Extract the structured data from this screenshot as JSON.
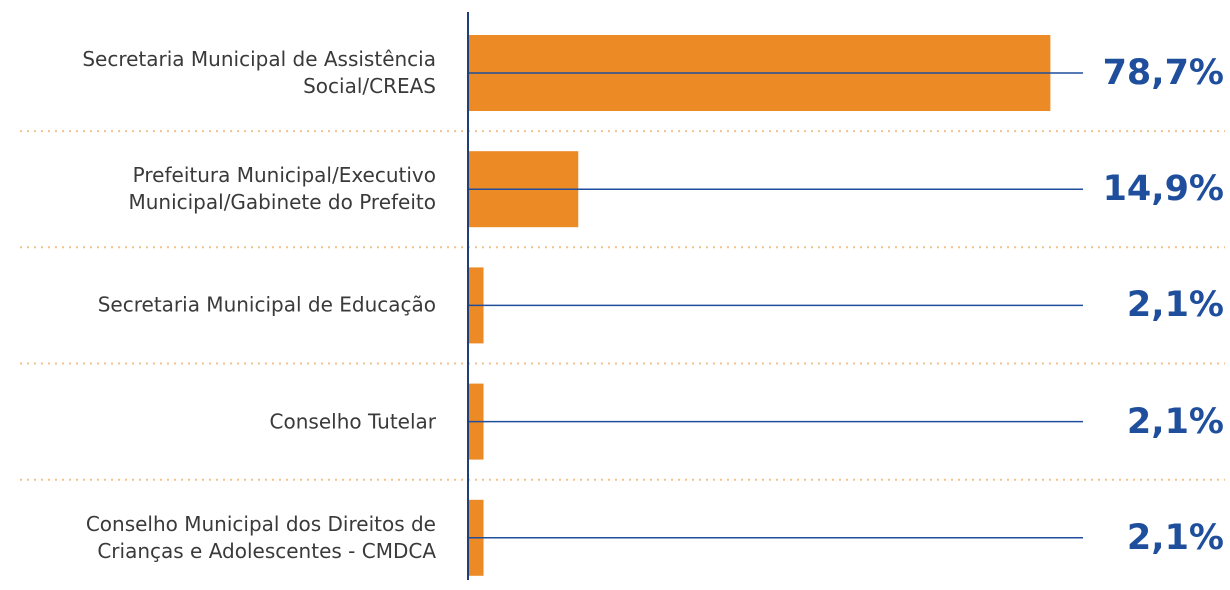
{
  "chart_data": {
    "type": "barh",
    "categories": [
      "Secretaria Municipal de Assistência\nSocial/CREAS",
      "Prefeitura Municipal/Executivo\nMunicipal/Gabinete do Prefeito",
      "Secretaria Municipal de Educação",
      "Conselho Tutelar",
      "Conselho Municipal dos Direitos de\nCrianças e Adolescentes - CMDCA"
    ],
    "values": [
      78.7,
      14.9,
      2.1,
      2.1,
      2.1
    ],
    "value_labels": [
      "78,7%",
      "14,9%",
      "2,1%",
      "2,1%",
      "2,1%"
    ],
    "color": "#ec8a25",
    "xlim": [
      0,
      80
    ]
  }
}
